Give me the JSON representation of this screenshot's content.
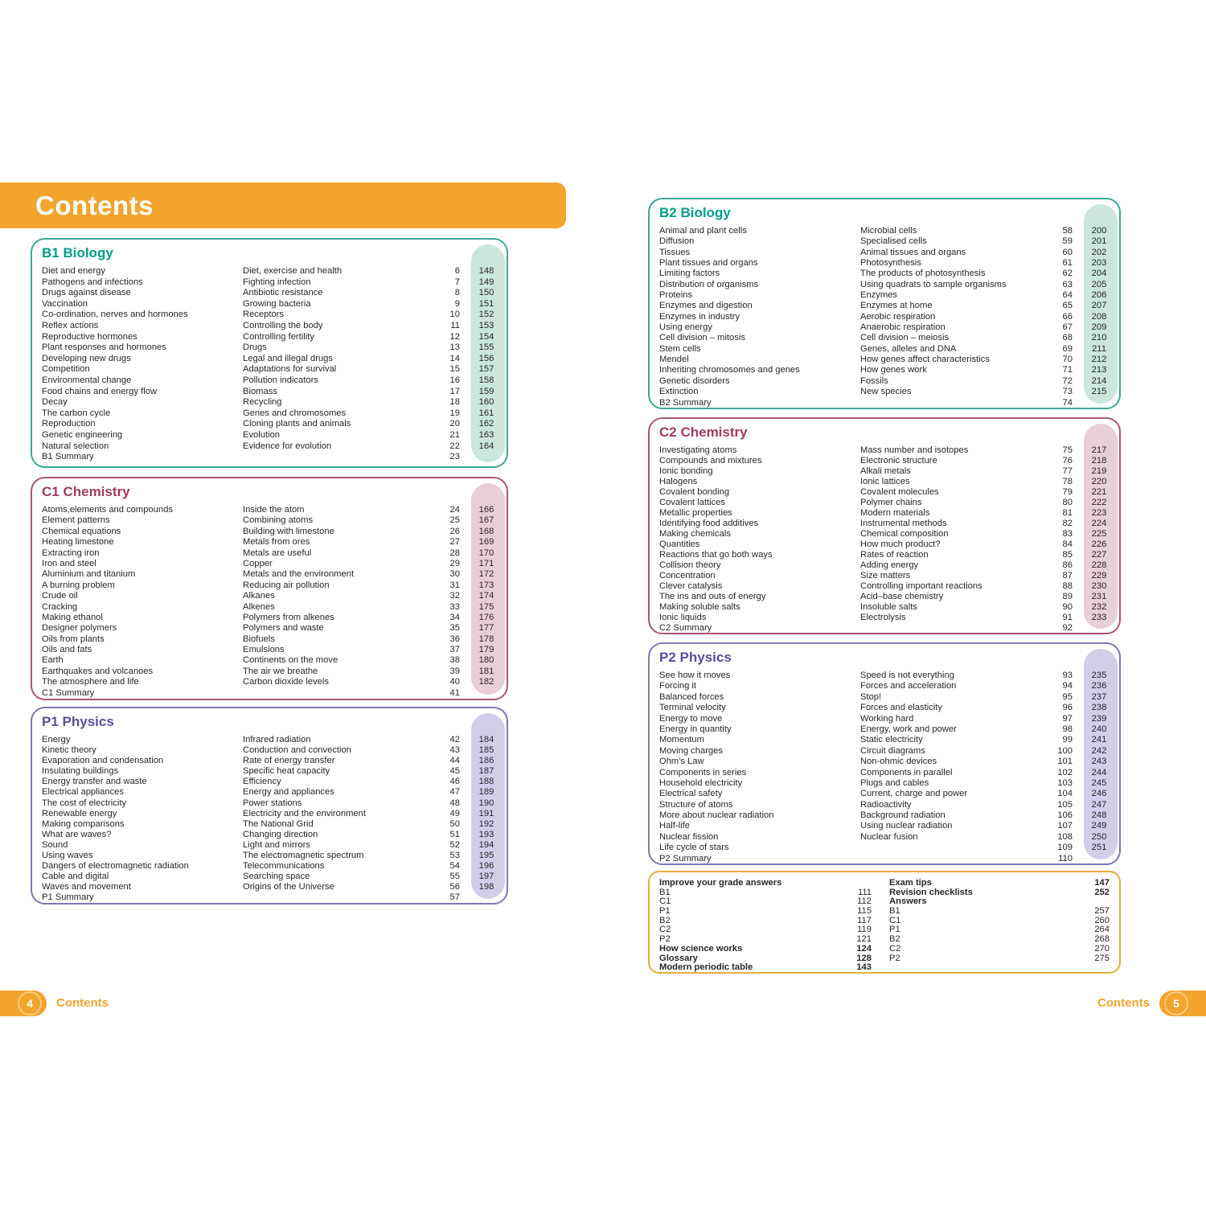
{
  "header": {
    "title": "Contents"
  },
  "accent_orange": "#F2A42C",
  "text_color": "#29262a",
  "themes": {
    "teal": {
      "heading": "#009E87",
      "border": "#3BA895",
      "pill": "#CBE6DB"
    },
    "berry": {
      "heading": "#A03A60",
      "border": "#AD5571",
      "pill": "#E8CFD6"
    },
    "purple": {
      "heading": "#5C4E9E",
      "border": "#8276B4",
      "pill": "#D4CDE9"
    },
    "gold": {
      "border": "#E8AC3F"
    }
  },
  "sections": [
    {
      "id": "b1",
      "title": "B1 Biology",
      "theme": "teal",
      "rows": [
        [
          "Diet and energy",
          "Diet, exercise and health",
          "6",
          "148"
        ],
        [
          "Pathogens and infections",
          "Fighting infection",
          "7",
          "149"
        ],
        [
          "Drugs against disease",
          "Antibiotic resistance",
          "8",
          "150"
        ],
        [
          "Vaccination",
          "Growing bacteria",
          "9",
          "151"
        ],
        [
          "Co-ordination, nerves and hormones",
          "Receptors",
          "10",
          "152"
        ],
        [
          "Reflex actions",
          "Controlling the body",
          "11",
          "153"
        ],
        [
          "Reproductive hormones",
          "Controlling fertility",
          "12",
          "154"
        ],
        [
          "Plant responses and hormones",
          "Drugs",
          "13",
          "155"
        ],
        [
          "Developing new drugs",
          "Legal and illegal drugs",
          "14",
          "156"
        ],
        [
          "Competition",
          "Adaptations for survival",
          "15",
          "157"
        ],
        [
          "Environmental change",
          "Pollution indicators",
          "16",
          "158"
        ],
        [
          "Food chains and energy flow",
          "Biomass",
          "17",
          "159"
        ],
        [
          "Decay",
          "Recycling",
          "18",
          "160"
        ],
        [
          "The carbon cycle",
          "Genes and chromosomes",
          "19",
          "161"
        ],
        [
          "Reproduction",
          "Cloning plants and animals",
          "20",
          "162"
        ],
        [
          "Genetic engineering",
          "Evolution",
          "21",
          "163"
        ],
        [
          "Natural selection",
          "Evidence for evolution",
          "22",
          "164"
        ],
        [
          "B1 Summary",
          "",
          "23",
          ""
        ]
      ]
    },
    {
      "id": "c1",
      "title": "C1 Chemistry",
      "theme": "berry",
      "rows": [
        [
          "Atoms,elements and compounds",
          "Inside the atom",
          "24",
          "166"
        ],
        [
          "Element patterns",
          "Combining atoms",
          "25",
          "167"
        ],
        [
          "Chemical equations",
          "Building with limestone",
          "26",
          "168"
        ],
        [
          "Heating limestone",
          "Metals from ores",
          "27",
          "169"
        ],
        [
          "Extracting iron",
          "Metals are useful",
          "28",
          "170"
        ],
        [
          "Iron and steel",
          "Copper",
          "29",
          "171"
        ],
        [
          "Aluminium and titanium",
          "Metals and the environment",
          "30",
          "172"
        ],
        [
          "A burning problem",
          "Reducing air pollution",
          "31",
          "173"
        ],
        [
          "Crude oil",
          "Alkanes",
          "32",
          "174"
        ],
        [
          "Cracking",
          "Alkenes",
          "33",
          "175"
        ],
        [
          "Making ethanol",
          "Polymers from alkenes",
          "34",
          "176"
        ],
        [
          "Designer polymers",
          "Polymers and waste",
          "35",
          "177"
        ],
        [
          "Oils from plants",
          "Biofuels",
          "36",
          "178"
        ],
        [
          "Oils and fats",
          "Emulsions",
          "37",
          "179"
        ],
        [
          "Earth",
          "Continents on the move",
          "38",
          "180"
        ],
        [
          "Earthquakes and volcanoes",
          "The air we breathe",
          "39",
          "181"
        ],
        [
          "The atmosphere and life",
          "Carbon dioxide levels",
          "40",
          "182"
        ],
        [
          "C1 Summary",
          "",
          "41",
          ""
        ]
      ]
    },
    {
      "id": "p1",
      "title": "P1 Physics",
      "theme": "purple",
      "rows": [
        [
          "Energy",
          "Infrared radiation",
          "42",
          "184"
        ],
        [
          "Kinetic theory",
          "Conduction and convection",
          "43",
          "185"
        ],
        [
          "Evaporation and condensation",
          "Rate of energy transfer",
          "44",
          "186"
        ],
        [
          "Insulating buildings",
          "Specific heat capacity",
          "45",
          "187"
        ],
        [
          "Energy transfer and waste",
          "Efficiency",
          "46",
          "188"
        ],
        [
          "Electrical appliances",
          "Energy and appliances",
          "47",
          "189"
        ],
        [
          "The cost of electricity",
          "Power stations",
          "48",
          "190"
        ],
        [
          "Renewable energy",
          "Electricity and the environment",
          "49",
          "191"
        ],
        [
          "Making comparisons",
          "The National Grid",
          "50",
          "192"
        ],
        [
          "What are waves?",
          "Changing direction",
          "51",
          "193"
        ],
        [
          "Sound",
          "Light and mirrors",
          "52",
          "194"
        ],
        [
          "Using waves",
          "The electromagnetic spectrum",
          "53",
          "195"
        ],
        [
          "Dangers of electromagnetic radiation",
          "Telecommunications",
          "54",
          "196"
        ],
        [
          "Cable and digital",
          "Searching space",
          "55",
          "197"
        ],
        [
          "Waves and movement",
          "Origins of the Universe",
          "56",
          "198"
        ],
        [
          "P1 Summary",
          "",
          "57",
          ""
        ]
      ]
    },
    {
      "id": "b2",
      "title": "B2 Biology",
      "theme": "teal",
      "rows": [
        [
          "Animal and plant cells",
          "Microbial cells",
          "58",
          "200"
        ],
        [
          "Diffusion",
          "Specialised cells",
          "59",
          "201"
        ],
        [
          "Tissues",
          "Animal tissues and organs",
          "60",
          "202"
        ],
        [
          "Plant tissues and organs",
          "Photosynthesis",
          "61",
          "203"
        ],
        [
          "Limiting factors",
          "The products of photosynthesis",
          "62",
          "204"
        ],
        [
          "Distribution of organisms",
          "Using quadrats to sample organisms",
          "63",
          "205"
        ],
        [
          "Proteins",
          "Enzymes",
          "64",
          "206"
        ],
        [
          "Enzymes and digestion",
          "Enzymes at home",
          "65",
          "207"
        ],
        [
          "Enzymes in industry",
          "Aerobic respiration",
          "66",
          "208"
        ],
        [
          "Using energy",
          "Anaerobic respiration",
          "67",
          "209"
        ],
        [
          "Cell division – mitosis",
          "Cell division – meiosis",
          "68",
          "210"
        ],
        [
          "Stem cells",
          "Genes, alleles and DNA",
          "69",
          "211"
        ],
        [
          "Mendel",
          "How genes affect characteristics",
          "70",
          "212"
        ],
        [
          "Inheriting chromosomes and genes",
          "How genes work",
          "71",
          "213"
        ],
        [
          "Genetic disorders",
          "Fossils",
          "72",
          "214"
        ],
        [
          "Extinction",
          "New species",
          "73",
          "215"
        ],
        [
          "B2 Summary",
          "",
          "74",
          ""
        ]
      ]
    },
    {
      "id": "c2",
      "title": "C2 Chemistry",
      "theme": "berry",
      "rows": [
        [
          "Investigating atoms",
          "Mass number and isotopes",
          "75",
          "217"
        ],
        [
          "Compounds and mixtures",
          "Electronic structure",
          "76",
          "218"
        ],
        [
          "Ionic bonding",
          "Alkali metals",
          "77",
          "219"
        ],
        [
          "Halogens",
          "Ionic lattices",
          "78",
          "220"
        ],
        [
          "Covalent bonding",
          "Covalent molecules",
          "79",
          "221"
        ],
        [
          "Covalent lattices",
          "Polymer chains",
          "80",
          "222"
        ],
        [
          "Metallic properties",
          "Modern materials",
          "81",
          "223"
        ],
        [
          "Identifying food additives",
          "Instrumental methods",
          "82",
          "224"
        ],
        [
          "Making chemicals",
          "Chemical composition",
          "83",
          "225"
        ],
        [
          "Quantities",
          "How much product?",
          "84",
          "226"
        ],
        [
          "Reactions that go both ways",
          "Rates of reaction",
          "85",
          "227"
        ],
        [
          "Collision theory",
          "Adding energy",
          "86",
          "228"
        ],
        [
          "Concentration",
          "Size matters",
          "87",
          "229"
        ],
        [
          "Clever catalysis",
          "Controlling important reactions",
          "88",
          "230"
        ],
        [
          "The ins and outs of energy",
          "Acid–base chemistry",
          "89",
          "231"
        ],
        [
          "Making soluble salts",
          "Insoluble salts",
          "90",
          "232"
        ],
        [
          "Ionic liquids",
          "Electrolysis",
          "91",
          "233"
        ],
        [
          "C2 Summary",
          "",
          "92",
          ""
        ]
      ]
    },
    {
      "id": "p2",
      "title": "P2 Physics",
      "theme": "purple",
      "rows": [
        [
          "See how it moves",
          "Speed is not everything",
          "93",
          "235"
        ],
        [
          "Forcing it",
          "Forces and acceleration",
          "94",
          "236"
        ],
        [
          "Balanced forces",
          "Stop!",
          "95",
          "237"
        ],
        [
          "Terminal velocity",
          "Forces and elasticity",
          "96",
          "238"
        ],
        [
          "Energy to move",
          "Working hard",
          "97",
          "239"
        ],
        [
          "Energy in quantity",
          "Energy, work and power",
          "98",
          "240"
        ],
        [
          "Momentum",
          "Static electricity",
          "99",
          "241"
        ],
        [
          "Moving charges",
          "Circuit diagrams",
          "100",
          "242"
        ],
        [
          "Ohm's Law",
          "Non-ohmic devices",
          "101",
          "243"
        ],
        [
          "Components in series",
          "Components in parallel",
          "102",
          "244"
        ],
        [
          "Household electricity",
          "Plugs and cables",
          "103",
          "245"
        ],
        [
          "Electrical safety",
          "Current, charge and power",
          "104",
          "246"
        ],
        [
          "Structure of atoms",
          "Radioactivity",
          "105",
          "247"
        ],
        [
          "More about nuclear radiation",
          "Background radiation",
          "106",
          "248"
        ],
        [
          "Half-life",
          "Using nuclear radiation",
          "107",
          "249"
        ],
        [
          "Nuclear fission",
          "Nuclear fusion",
          "108",
          "250"
        ],
        [
          "Life cycle of stars",
          "",
          "109",
          "251"
        ],
        [
          "P2 Summary",
          "",
          "110",
          ""
        ]
      ]
    }
  ],
  "index_box": {
    "left_rows": [
      {
        "label": "Improve your grade answers",
        "num": "",
        "bold": true
      },
      {
        "label": "B1",
        "num": "111",
        "bold": false
      },
      {
        "label": "C1",
        "num": "112",
        "bold": false
      },
      {
        "label": "P1",
        "num": "115",
        "bold": false
      },
      {
        "label": "B2",
        "num": "117",
        "bold": false
      },
      {
        "label": "C2",
        "num": "119",
        "bold": false
      },
      {
        "label": "P2",
        "num": "121",
        "bold": false
      },
      {
        "label": "How science works",
        "num": "124",
        "bold": true
      },
      {
        "label": "Glossary",
        "num": "128",
        "bold": true
      },
      {
        "label": "Modern periodic table",
        "num": "143",
        "bold": true
      }
    ],
    "right_rows": [
      {
        "label": "Exam tips",
        "num": "147",
        "bold": true
      },
      {
        "label": "Revision checklists",
        "num": "252",
        "bold": true
      },
      {
        "label": "Answers",
        "num": "",
        "bold": true
      },
      {
        "label": "B1",
        "num": "257",
        "bold": false
      },
      {
        "label": "C1",
        "num": "260",
        "bold": false
      },
      {
        "label": "P1",
        "num": "264",
        "bold": false
      },
      {
        "label": "B2",
        "num": "268",
        "bold": false
      },
      {
        "label": "C2",
        "num": "270",
        "bold": false
      },
      {
        "label": "P2",
        "num": "275",
        "bold": false
      }
    ]
  },
  "footer": {
    "left": {
      "page_number": "4",
      "label": "Contents"
    },
    "right": {
      "page_number": "5",
      "label": "Contents"
    }
  }
}
